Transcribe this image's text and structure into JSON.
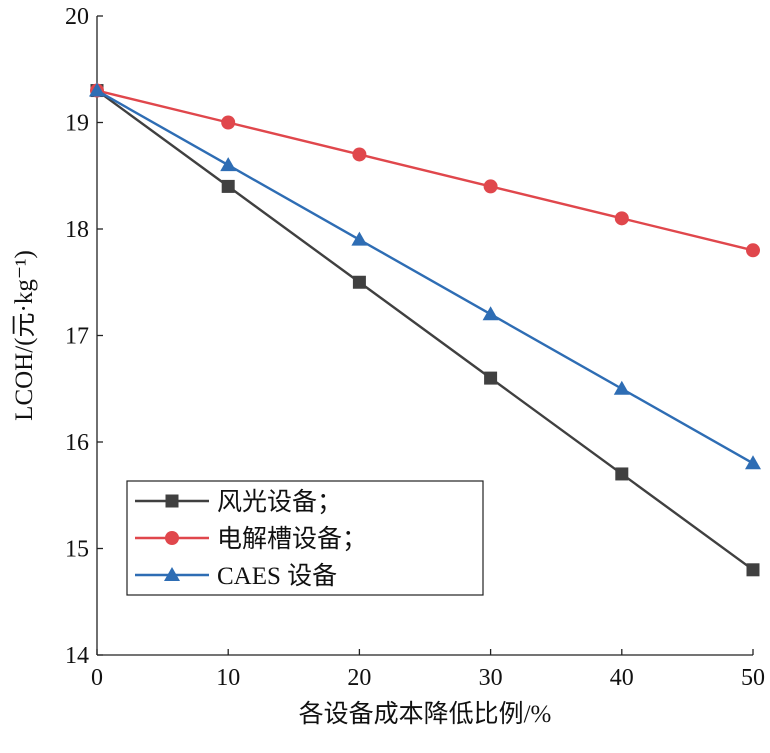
{
  "chart_data": {
    "type": "line",
    "title": "",
    "xlabel": "各设备成本降低比例/%",
    "ylabel": "LCOH/(元·kg⁻¹)",
    "x": [
      0,
      10,
      20,
      30,
      40,
      50
    ],
    "xlim": [
      0,
      50
    ],
    "ylim": [
      14,
      20
    ],
    "x_ticks": [
      "0",
      "10",
      "20",
      "30",
      "40",
      "50"
    ],
    "y_ticks": [
      "14",
      "15",
      "16",
      "17",
      "18",
      "19",
      "20"
    ],
    "grid": false,
    "legend_position": "bottom-left",
    "series": [
      {
        "name": "风光设备；",
        "values": [
          19.3,
          18.4,
          17.5,
          16.6,
          15.7,
          14.8
        ],
        "color": "#404040",
        "marker": "square"
      },
      {
        "name": "电解槽设备；",
        "values": [
          19.3,
          19.0,
          18.7,
          18.4,
          18.1,
          17.8
        ],
        "color": "#e0474c",
        "marker": "circle"
      },
      {
        "name": "CAES 设备",
        "values": [
          19.3,
          18.6,
          17.9,
          17.2,
          16.5,
          15.8
        ],
        "color": "#2e6db4",
        "marker": "triangle"
      }
    ]
  }
}
